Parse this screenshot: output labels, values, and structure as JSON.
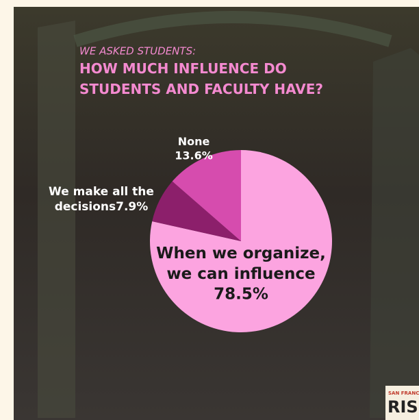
{
  "chart_data": {
    "type": "pie",
    "subtitle": "WE ASKED STUDENTS:",
    "title": "HOW MUCH INFLUENCE DO STUDENTS AND FACULTY HAVE?",
    "categories": [
      "When we organize, we can influence",
      "We make all the decisions",
      "None"
    ],
    "values": [
      78.5,
      7.9,
      13.6
    ],
    "value_labels": [
      "78.5%",
      "7.9%",
      "13.6%"
    ],
    "colors": [
      "#fca4e0",
      "#8c1f6b",
      "#d64cae"
    ]
  },
  "logo": {
    "top": "SAN FRANCISCO",
    "main": "RISING"
  }
}
